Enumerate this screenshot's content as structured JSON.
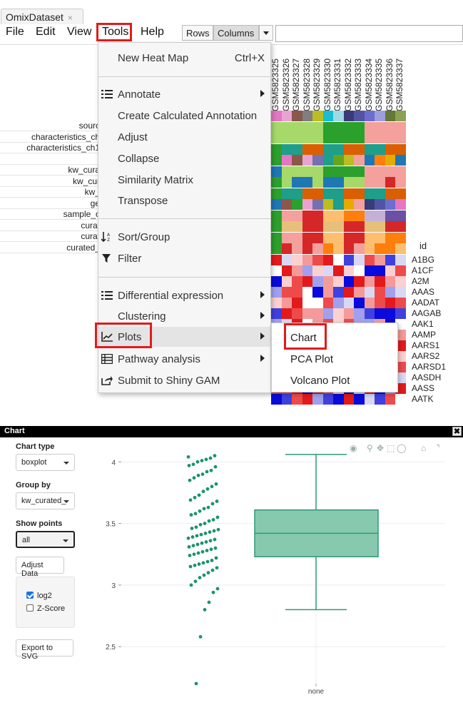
{
  "tab": {
    "title": "OmixDataset",
    "close": "×"
  },
  "menubar": [
    "File",
    "Edit",
    "View",
    "Tools",
    "Help"
  ],
  "toggle": {
    "rows": "Rows",
    "columns": "Columns"
  },
  "column_ids": [
    "GSM5823325",
    "GSM5823326",
    "GSM5823327",
    "GSM5823328",
    "GSM5823329",
    "GSM5823330",
    "GSM5823331",
    "GSM5823332",
    "GSM5823333",
    "GSM5823334",
    "GSM5823335",
    "GSM5823336",
    "GSM5823337"
  ],
  "annotation_labels": [
    "sourc",
    "characteristics_ch",
    "characteristics_ch1",
    "",
    "kw_cura",
    "kw_cur",
    "kw_",
    "ge",
    "sample_c",
    "curat",
    "curat",
    "curated_"
  ],
  "row_header": "id",
  "row_ids": [
    "A1BG",
    "A1CF",
    "A2M",
    "AAAS",
    "AADAT",
    "AAGAB",
    "AAK1",
    "AAMP",
    "AARS1",
    "AARS2",
    "AARSD1",
    "AASDH",
    "AASS",
    "AATK"
  ],
  "tools_menu": {
    "new_heat_map": "New Heat Map",
    "new_heat_map_shortcut": "Ctrl+X",
    "annotate": "Annotate",
    "calc_annotation": "Create Calculated Annotation",
    "adjust": "Adjust",
    "collapse": "Collapse",
    "similarity": "Similarity Matrix",
    "transpose": "Transpose",
    "sort_group": "Sort/Group",
    "filter": "Filter",
    "diff_expr": "Differential expression",
    "clustering": "Clustering",
    "plots": "Plots",
    "pathway": "Pathway analysis",
    "shiny": "Submit to Shiny GAM"
  },
  "plots_submenu": [
    "Chart",
    "PCA Plot",
    "Volcano Plot"
  ],
  "dialog": {
    "title": "Chart",
    "close": "✖",
    "chart_type_label": "Chart type",
    "chart_type_value": "boxplot",
    "group_by_label": "Group by",
    "group_by_value": "kw_curated_",
    "show_points_label": "Show points",
    "show_points_value": "all",
    "adjust_data": "Adjust Data",
    "log2_label": "log2",
    "log2_checked": true,
    "zscore_label": "Z-Score",
    "zscore_checked": false,
    "export_svg": "Export to SVG"
  },
  "colors": {
    "accent_red": "#e21b1b",
    "box_fill": "#86c9ae",
    "box_stroke": "#2e9a74",
    "points": "#1b9469"
  },
  "chart_data": {
    "type": "boxplot",
    "categories": [
      "none"
    ],
    "box": {
      "min": 2.8,
      "q1": 3.23,
      "median": 3.42,
      "q3": 3.61,
      "max": 4.06
    },
    "ylim": [
      2.2,
      4.1
    ],
    "yticks": [
      2.5,
      3,
      3.5,
      4
    ],
    "ytick_labels": [
      "2.5",
      "3",
      "3.5",
      "4"
    ],
    "grid": true,
    "points": [
      4.04,
      4.05,
      4.03,
      4.02,
      4.01,
      4.0,
      3.98,
      3.97,
      3.96,
      3.93,
      3.92,
      3.9,
      3.89,
      3.87,
      3.85,
      3.82,
      3.8,
      3.78,
      3.76,
      3.73,
      3.71,
      3.69,
      3.68,
      3.66,
      3.63,
      3.62,
      3.6,
      3.58,
      3.57,
      3.55,
      3.53,
      3.52,
      3.5,
      3.49,
      3.47,
      3.46,
      3.45,
      3.44,
      3.43,
      3.42,
      3.41,
      3.4,
      3.39,
      3.38,
      3.37,
      3.36,
      3.35,
      3.34,
      3.33,
      3.32,
      3.31,
      3.3,
      3.29,
      3.28,
      3.27,
      3.26,
      3.25,
      3.24,
      3.22,
      3.2,
      3.19,
      3.18,
      3.17,
      3.16,
      3.15,
      3.14,
      3.12,
      3.1,
      3.08,
      3.06,
      3.03,
      3.0,
      2.97,
      2.94,
      2.86,
      2.8,
      2.58,
      2.2
    ]
  }
}
